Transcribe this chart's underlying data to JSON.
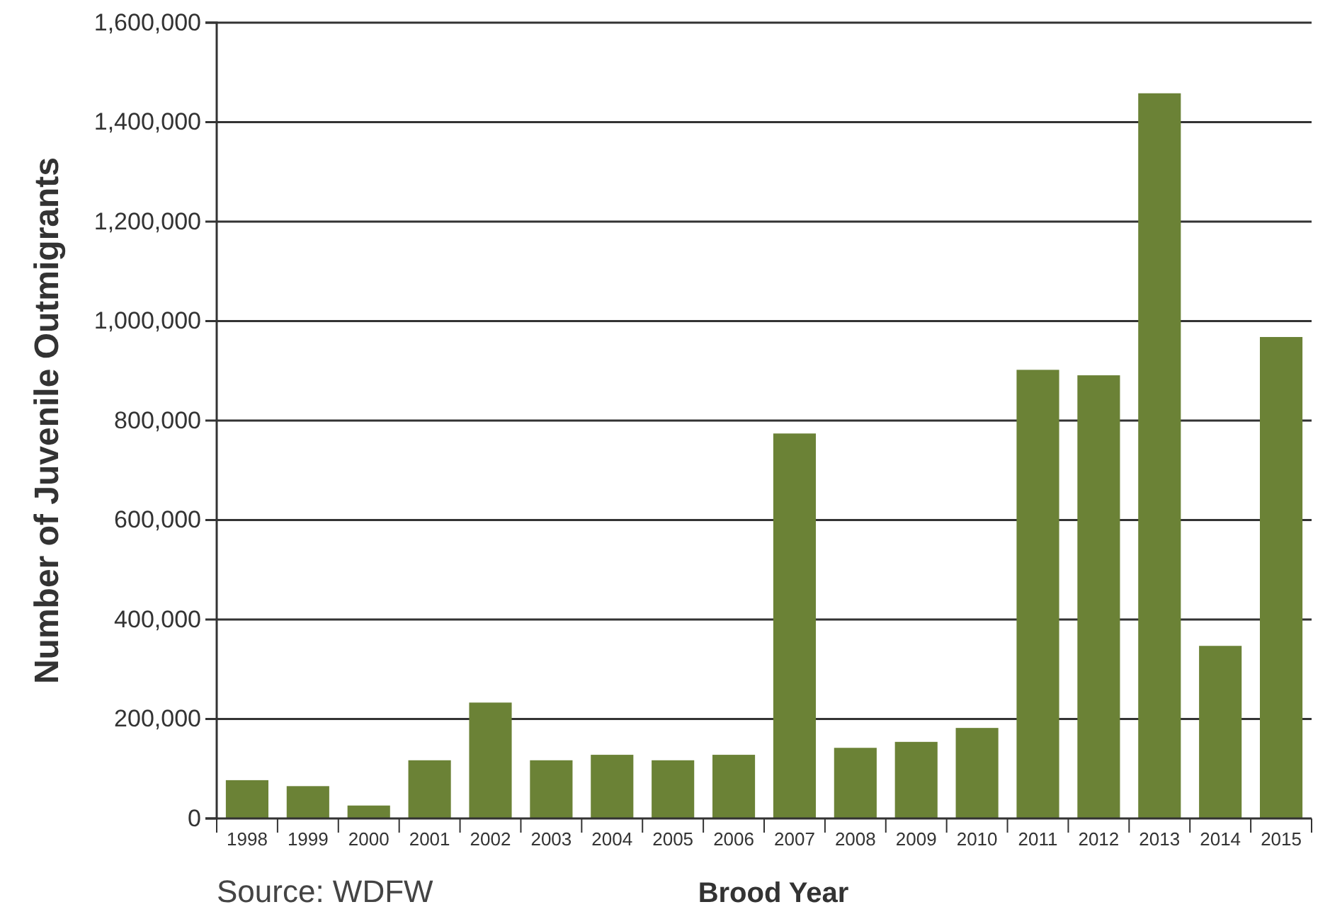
{
  "chart_data": {
    "type": "bar",
    "xlabel": "Brood Year",
    "ylabel": "Number of Juvenile Outmigrants",
    "categories": [
      "1998",
      "1999",
      "2000",
      "2001",
      "2002",
      "2003",
      "2004",
      "2005",
      "2006",
      "2007",
      "2008",
      "2009",
      "2010",
      "2011",
      "2012",
      "2013",
      "2014",
      "2015"
    ],
    "values": [
      77000,
      65000,
      26000,
      117000,
      233000,
      117000,
      128000,
      117000,
      128000,
      774000,
      142000,
      154000,
      182000,
      902000,
      891000,
      1458000,
      347000,
      968000
    ],
    "color": "#6b8236",
    "ylim": [
      0,
      1600000
    ],
    "yticks": [
      {
        "value": 0,
        "label": "0"
      },
      {
        "value": 200000,
        "label": "200,000"
      },
      {
        "value": 400000,
        "label": "400,000"
      },
      {
        "value": 600000,
        "label": "600,000"
      },
      {
        "value": 800000,
        "label": "800,000"
      },
      {
        "value": 1000000,
        "label": "1,000,000"
      },
      {
        "value": 1200000,
        "label": "1,200,000"
      },
      {
        "value": 1400000,
        "label": "1,400,000"
      },
      {
        "value": 1600000,
        "label": "1,600,000"
      }
    ],
    "grid": "y",
    "annotations": [
      "Source: WDFW"
    ]
  }
}
